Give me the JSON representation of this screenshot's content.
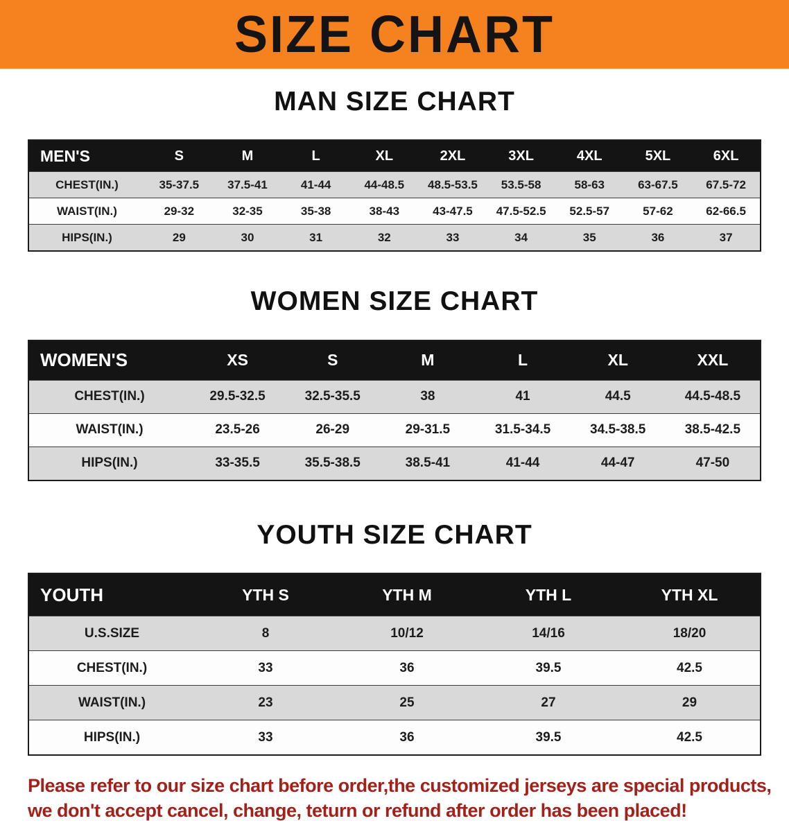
{
  "banner": {
    "title": "SIZE CHART",
    "bg_color": "#F5821F",
    "text_color": "#141414"
  },
  "chart_data": [
    {
      "type": "table",
      "title": "MAN SIZE CHART",
      "header": [
        "MEN'S",
        "S",
        "M",
        "L",
        "XL",
        "2XL",
        "3XL",
        "4XL",
        "5XL",
        "6XL"
      ],
      "rows": [
        [
          "CHEST(IN.)",
          "35-37.5",
          "37.5-41",
          "41-44",
          "44-48.5",
          "48.5-53.5",
          "53.5-58",
          "58-63",
          "63-67.5",
          "67.5-72"
        ],
        [
          "WAIST(IN.)",
          "29-32",
          "32-35",
          "35-38",
          "38-43",
          "43-47.5",
          "47.5-52.5",
          "52.5-57",
          "57-62",
          "62-66.5"
        ],
        [
          "HIPS(IN.)",
          "29",
          "30",
          "31",
          "32",
          "33",
          "34",
          "35",
          "36",
          "37"
        ]
      ]
    },
    {
      "type": "table",
      "title": "WOMEN SIZE CHART",
      "header": [
        "WOMEN'S",
        "XS",
        "S",
        "M",
        "L",
        "XL",
        "XXL"
      ],
      "rows": [
        [
          "CHEST(IN.)",
          "29.5-32.5",
          "32.5-35.5",
          "38",
          "41",
          "44.5",
          "44.5-48.5"
        ],
        [
          "WAIST(IN.)",
          "23.5-26",
          "26-29",
          "29-31.5",
          "31.5-34.5",
          "34.5-38.5",
          "38.5-42.5"
        ],
        [
          "HIPS(IN.)",
          "33-35.5",
          "35.5-38.5",
          "38.5-41",
          "41-44",
          "44-47",
          "47-50"
        ]
      ]
    },
    {
      "type": "table",
      "title": "YOUTH SIZE CHART",
      "header": [
        "YOUTH",
        "YTH S",
        "YTH M",
        "YTH L",
        "YTH XL"
      ],
      "rows": [
        [
          "U.S.SIZE",
          "8",
          "10/12",
          "14/16",
          "18/20"
        ],
        [
          "CHEST(IN.)",
          "33",
          "36",
          "39.5",
          "42.5"
        ],
        [
          "WAIST(IN.)",
          "23",
          "25",
          "27",
          "29"
        ],
        [
          "HIPS(IN.)",
          "33",
          "36",
          "39.5",
          "42.5"
        ]
      ]
    }
  ],
  "disclaimer": {
    "line1": "Please refer to our size chart before order,the customized jerseys are special products,",
    "line2": "we don't accept cancel, change, teturn or refund after order has been placed!",
    "color": "#A2211B"
  }
}
